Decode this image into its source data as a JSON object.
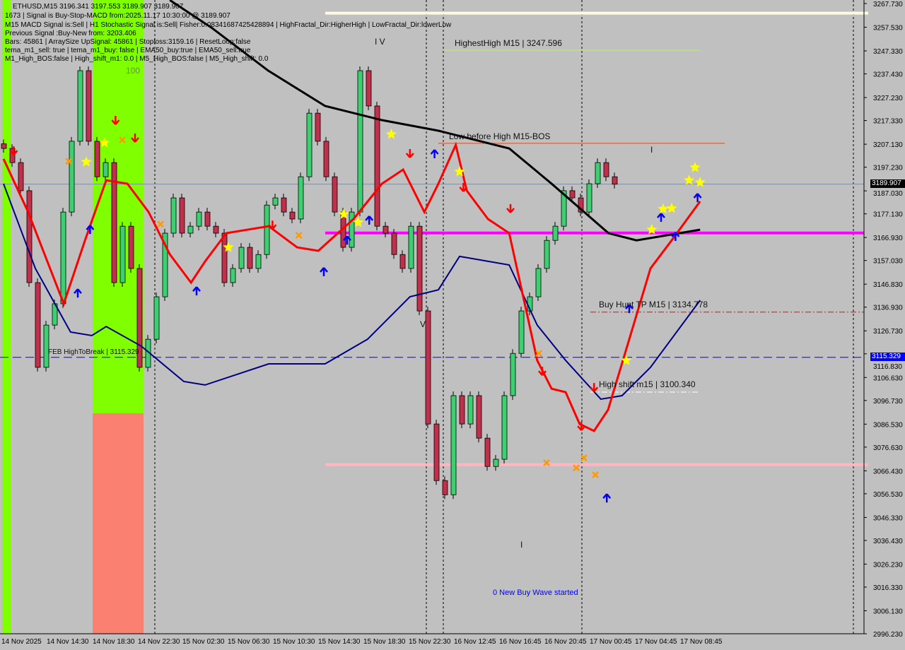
{
  "header": {
    "symbol_line": "ETHUSD,M15  3196.341 3197.553 3189.907 3189.907",
    "info_lines": [
      "1673 | Signal is Buy-Stop-MACD from:2025.11.17 10:30:00 @ 3189.907",
      "M15 MACD Signal is:Sell | H1 Stochastic Signal is:Sell| Fisher:0.08341687425428894 | HighFractal_Dir:HigherHigh | LowFractal_Dir:lowerLow",
      "Previous Signal :Buy-New from: 3203.406",
      "Bars: 45861 | ArraySize UpSignal: 45861 | Stoploss:3159.16 | ResetLoop:false",
      "tema_m1_sell: true | tema_m1_buy: false | EMA50_buy:true | EMA50_sell:true",
      "M1_High_BOS:false | High_shift_m1: 0.0 | M5_High_BOS:false | M5_High_shift: 0.0"
    ],
    "zone_label": "100"
  },
  "annotations": {
    "highest_high": "HighestHigh   M15 | 3247.596",
    "low_before_high": "Low before High   M15-BOS",
    "buy_hunt_tp": "Buy Hunt  TP M15 | 3134.778",
    "high_shift": "High shift m15 | 3100.340",
    "high_to_break": "FEB HighToBreak | 3115.329",
    "new_buy_wave": "0 New Buy Wave started",
    "wave_iv": "I V",
    "wave_v": "V",
    "mark_i_a": "I",
    "mark_i_b": "I"
  },
  "badges": {
    "last_price": "3189.907",
    "high_to_break_price": "3115.329"
  },
  "colors": {
    "background": "#c0c0c0",
    "bull_candle": "#3cd070",
    "bear_candle": "#c0304a",
    "ema_fast": "#ff0000",
    "ema_slow": "#000080",
    "ma_long": "#000000",
    "magenta_level": "#ff00ff",
    "pink_level": "#ffb6c1",
    "cream_level": "#fffbe0",
    "green_zone": "#80ff00",
    "salmon_zone": "#fa8072",
    "last_price_badge": "#000000",
    "break_badge": "#0000ff"
  },
  "chart_data": {
    "type": "candlestick",
    "symbol": "ETHUSD",
    "timeframe": "M15",
    "ylim": [
      2996.23,
      3267.73
    ],
    "y_ticks": [
      "3267.730",
      "3257.530",
      "3247.330",
      "3237.430",
      "3227.230",
      "3217.330",
      "3207.130",
      "3197.230",
      "3187.030",
      "3177.130",
      "3166.930",
      "3157.030",
      "3146.830",
      "3136.930",
      "3126.730",
      "3116.830",
      "3106.630",
      "3096.730",
      "3086.530",
      "3076.630",
      "3066.430",
      "3056.530",
      "3046.330",
      "3036.430",
      "3026.230",
      "3016.330",
      "3006.130",
      "2996.230"
    ],
    "x_ticks": [
      "14 Nov 2025",
      "14 Nov 14:30",
      "14 Nov 18:30",
      "14 Nov 22:30",
      "15 Nov 02:30",
      "15 Nov 06:30",
      "15 Nov 10:30",
      "15 Nov 14:30",
      "15 Nov 18:30",
      "15 Nov 22:30",
      "16 Nov 12:45",
      "16 Nov 16:45",
      "16 Nov 20:45",
      "17 Nov 00:45",
      "17 Nov 04:45",
      "17 Nov 08:45"
    ],
    "closes": [
      3205.3,
      3199.2,
      3187.1,
      3147.5,
      3111.0,
      3129.2,
      3138.4,
      3177.9,
      3208.4,
      3238.8,
      3208.4,
      3193.1,
      3199.2,
      3147.5,
      3171.8,
      3153.6,
      3111.0,
      3123.1,
      3141.4,
      3168.8,
      3184.0,
      3168.8,
      3171.8,
      3177.9,
      3171.8,
      3168.8,
      3147.5,
      3153.6,
      3162.7,
      3153.6,
      3159.6,
      3180.9,
      3184.0,
      3177.9,
      3174.9,
      3193.1,
      3220.5,
      3208.4,
      3193.1,
      3177.9,
      3162.7,
      3177.9,
      3238.8,
      3223.6,
      3171.8,
      3168.8,
      3159.6,
      3153.6,
      3171.8,
      3135.3,
      3086.6,
      3062.2,
      3056.1,
      3098.8,
      3086.6,
      3098.8,
      3080.5,
      3068.3,
      3071.4,
      3098.8,
      3117.0,
      3135.3,
      3141.4,
      3153.6,
      3165.7,
      3171.8,
      3187.1,
      3184.0,
      3177.9,
      3190.1,
      3199.2,
      3193.1,
      3189.9
    ],
    "lines": {
      "ma_long": [
        [
          19.6,
          3269.2
        ],
        [
          24.6,
          3257.1
        ],
        [
          31.2,
          3238.8
        ],
        [
          37.9,
          3223.6
        ],
        [
          44.6,
          3217.5
        ],
        [
          51.3,
          3212.9
        ],
        [
          59.6,
          3205.3
        ],
        [
          64.6,
          3190.1
        ],
        [
          71.3,
          3168.8
        ],
        [
          74.6,
          3165.7
        ],
        [
          82.1,
          3170.3
        ]
      ],
      "ema_slow": [
        [
          0,
          3190.1
        ],
        [
          3.75,
          3153.6
        ],
        [
          7.9,
          3126.2
        ],
        [
          10.4,
          3124.7
        ],
        [
          12.1,
          3128.6
        ],
        [
          16.25,
          3120.1
        ],
        [
          21.25,
          3104.9
        ],
        [
          23.75,
          3103.4
        ],
        [
          31.25,
          3112.5
        ],
        [
          37.9,
          3112.5
        ],
        [
          42.9,
          3123.1
        ],
        [
          47.9,
          3141.4
        ],
        [
          51.25,
          3144.4
        ],
        [
          53.75,
          3158.8
        ],
        [
          59.6,
          3155.1
        ],
        [
          62.9,
          3129.2
        ],
        [
          66.25,
          3114.0
        ],
        [
          70.4,
          3097.3
        ],
        [
          72.9,
          3098.8
        ],
        [
          76.25,
          3111.0
        ],
        [
          82.1,
          3139.9
        ]
      ],
      "ema_fast": [
        [
          0,
          3200.8
        ],
        [
          2.9,
          3177.9
        ],
        [
          7.1,
          3138.4
        ],
        [
          9.6,
          3165.7
        ],
        [
          12.1,
          3191.6
        ],
        [
          14.6,
          3190.1
        ],
        [
          17.1,
          3177.9
        ],
        [
          19.6,
          3159.7
        ],
        [
          22.1,
          3147.5
        ],
        [
          23.75,
          3156.6
        ],
        [
          26.25,
          3168.8
        ],
        [
          31.25,
          3171.8
        ],
        [
          34.6,
          3162.7
        ],
        [
          37.1,
          3161.2
        ],
        [
          41.25,
          3174.9
        ],
        [
          44.6,
          3190.1
        ],
        [
          47.1,
          3196.2
        ],
        [
          49.6,
          3177.9
        ],
        [
          51.25,
          3190.1
        ],
        [
          53.3,
          3206.8
        ],
        [
          54.6,
          3187.1
        ],
        [
          57.1,
          3174.9
        ],
        [
          59.6,
          3168.8
        ],
        [
          62.9,
          3114.0
        ],
        [
          64.6,
          3101.8
        ],
        [
          66.25,
          3100.3
        ],
        [
          67.9,
          3086.6
        ],
        [
          69.6,
          3083.6
        ],
        [
          71.25,
          3092.7
        ],
        [
          73.75,
          3123.1
        ],
        [
          76.25,
          3153.6
        ],
        [
          78.75,
          3165.7
        ],
        [
          82.1,
          3182.5
        ]
      ]
    },
    "levels": {
      "highest_high": 3247.596,
      "low_before_high": 3207.5,
      "last_price": 3189.907,
      "magenta": 3168.9,
      "buy_hunt_tp": 3134.778,
      "high_to_break": 3115.329,
      "high_shift": 3100.34,
      "pink": 3069.1,
      "cream": 3263.6
    },
    "markers": {
      "stars": [
        [
          11.9,
          3207.8
        ],
        [
          9.75,
          3199.5
        ],
        [
          26.5,
          3162.7
        ],
        [
          40.1,
          3177.0
        ],
        [
          41.8,
          3173.4
        ],
        [
          45.7,
          3211.4
        ],
        [
          53.75,
          3195.3
        ],
        [
          73.4,
          3114.0
        ],
        [
          76.4,
          3170.3
        ],
        [
          77.75,
          3179.2
        ],
        [
          78.75,
          3179.5
        ],
        [
          80.8,
          3191.6
        ],
        [
          81.5,
          3197.1
        ],
        [
          82.1,
          3190.7
        ]
      ],
      "buy_arrows": [
        [
          8.75,
          3142.9
        ],
        [
          10.2,
          3170.3
        ],
        [
          22.75,
          3143.8
        ],
        [
          37.75,
          3152.1
        ],
        [
          40.5,
          3165.7
        ],
        [
          43.1,
          3174.3
        ],
        [
          50.8,
          3202.9
        ],
        [
          73.75,
          3136.2
        ],
        [
          71.1,
          3054.6
        ],
        [
          77.5,
          3175.5
        ],
        [
          79.2,
          3167.3
        ],
        [
          81.8,
          3184.0
        ]
      ],
      "sell_arrows": [
        [
          1.2,
          3204.4
        ],
        [
          13.2,
          3217.5
        ],
        [
          15.5,
          3209.9
        ],
        [
          31.7,
          3172.4
        ],
        [
          47.9,
          3203.2
        ],
        [
          54.2,
          3188.6
        ],
        [
          59.75,
          3179.5
        ],
        [
          63.5,
          3109.4
        ],
        [
          68.1,
          3085.7
        ],
        [
          69.6,
          3102.4
        ]
      ],
      "crosses": [
        [
          7.7,
          3199.8
        ],
        [
          14.0,
          3209.0
        ],
        [
          18.5,
          3172.7
        ],
        [
          34.8,
          3167.9
        ],
        [
          63.1,
          3117.0
        ],
        [
          64.0,
          3069.9
        ],
        [
          67.5,
          3067.7
        ],
        [
          68.4,
          3072.0
        ],
        [
          69.75,
          3064.7
        ]
      ]
    }
  }
}
